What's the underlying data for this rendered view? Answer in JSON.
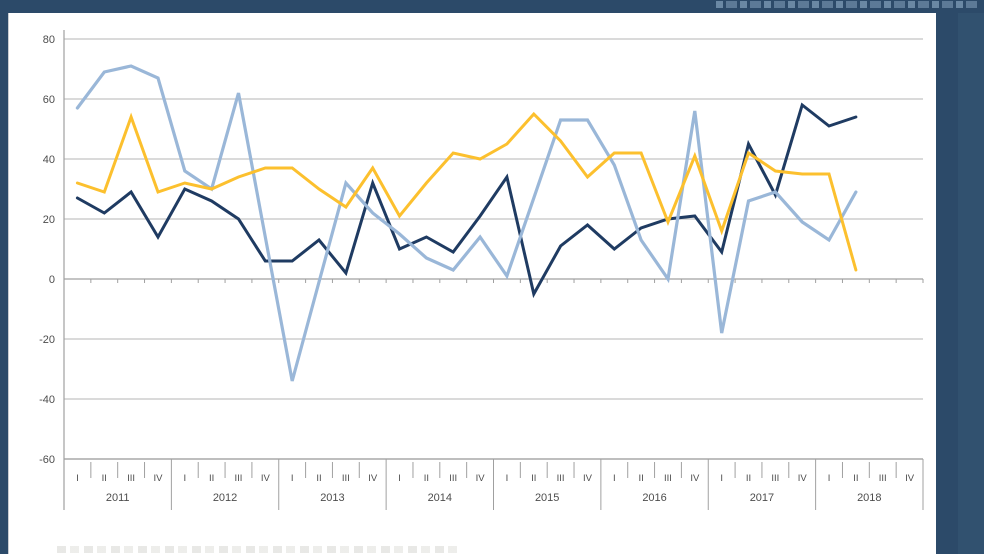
{
  "banner": {
    "present": true
  },
  "chart_data": {
    "type": "line",
    "title": "",
    "x_axis": {
      "years": [
        "2011",
        "2012",
        "2013",
        "2014",
        "2015",
        "2016",
        "2017",
        "2018"
      ],
      "quarters": [
        "I",
        "II",
        "III",
        "IV"
      ]
    },
    "y_axis": {
      "ticks": [
        80,
        60,
        40,
        20,
        0,
        -20,
        -40,
        -60
      ],
      "min": -60,
      "max": 80
    },
    "grid": true,
    "legend_position": "bottom (cut off at image edge)",
    "series": [
      {
        "name": "dark-blue-series",
        "color": "#1f3b62",
        "width": 3,
        "values": [
          27,
          22,
          29,
          14,
          30,
          26,
          20,
          6,
          6,
          13,
          2,
          32,
          10,
          14,
          9,
          21,
          34,
          -5,
          11,
          18,
          10,
          17,
          20,
          21,
          9,
          45,
          28,
          58,
          51,
          54
        ]
      },
      {
        "name": "light-blue-series",
        "color": "#9ab7d8",
        "width": 3.2,
        "values": [
          57,
          69,
          71,
          67,
          36,
          30,
          62,
          14,
          -34,
          -1,
          32,
          22,
          15,
          7,
          3,
          14,
          1,
          27,
          53,
          53,
          38,
          13,
          0,
          56,
          -18,
          26,
          29,
          19,
          13,
          29
        ]
      },
      {
        "name": "orange-series",
        "color": "#fcc02e",
        "width": 3,
        "values": [
          32,
          29,
          54,
          29,
          32,
          30,
          34,
          37,
          37,
          30,
          24,
          37,
          21,
          32,
          42,
          40,
          45,
          55,
          46,
          34,
          42,
          42,
          19,
          41,
          16,
          42,
          36,
          35,
          35,
          3
        ]
      }
    ],
    "colors": {
      "page_background": "#2c4a69",
      "plot_background": "#ffffff",
      "gridline": "#c4c4c4",
      "axis": "#a0a0a0",
      "label_text": "#4d4d4d"
    }
  }
}
